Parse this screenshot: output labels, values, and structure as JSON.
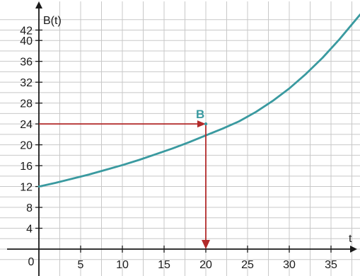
{
  "chart_data": {
    "type": "line",
    "title": "",
    "xlabel": "t",
    "ylabel": "B(t)",
    "xlim": [
      0,
      38.5
    ],
    "ylim": [
      -3,
      44
    ],
    "grid": true,
    "x_ticks": [
      5,
      10,
      15,
      20,
      25,
      30,
      35
    ],
    "y_ticks": [
      4,
      8,
      12,
      16,
      20,
      24,
      28,
      32,
      36,
      40,
      42
    ],
    "origin_label": "0",
    "series": [
      {
        "x": [
          0,
          2,
          4,
          6,
          8,
          10,
          12,
          14,
          16,
          18,
          20,
          22,
          24,
          26,
          28,
          30,
          32,
          34,
          36,
          38.5
        ],
        "y": [
          12.0,
          12.7,
          13.5,
          14.3,
          15.2,
          16.1,
          17.1,
          18.2,
          19.3,
          20.5,
          21.8,
          23.1,
          24.5,
          26.3,
          28.4,
          30.8,
          33.6,
          36.7,
          40.2,
          45.0
        ]
      }
    ],
    "point": {
      "label": "B",
      "x": 20,
      "y": 24
    },
    "colors": {
      "curve": "#3a9aa0",
      "marker": "#b22a2a",
      "grid": "#c8c8c8",
      "axis": "#1a1a1a"
    }
  }
}
